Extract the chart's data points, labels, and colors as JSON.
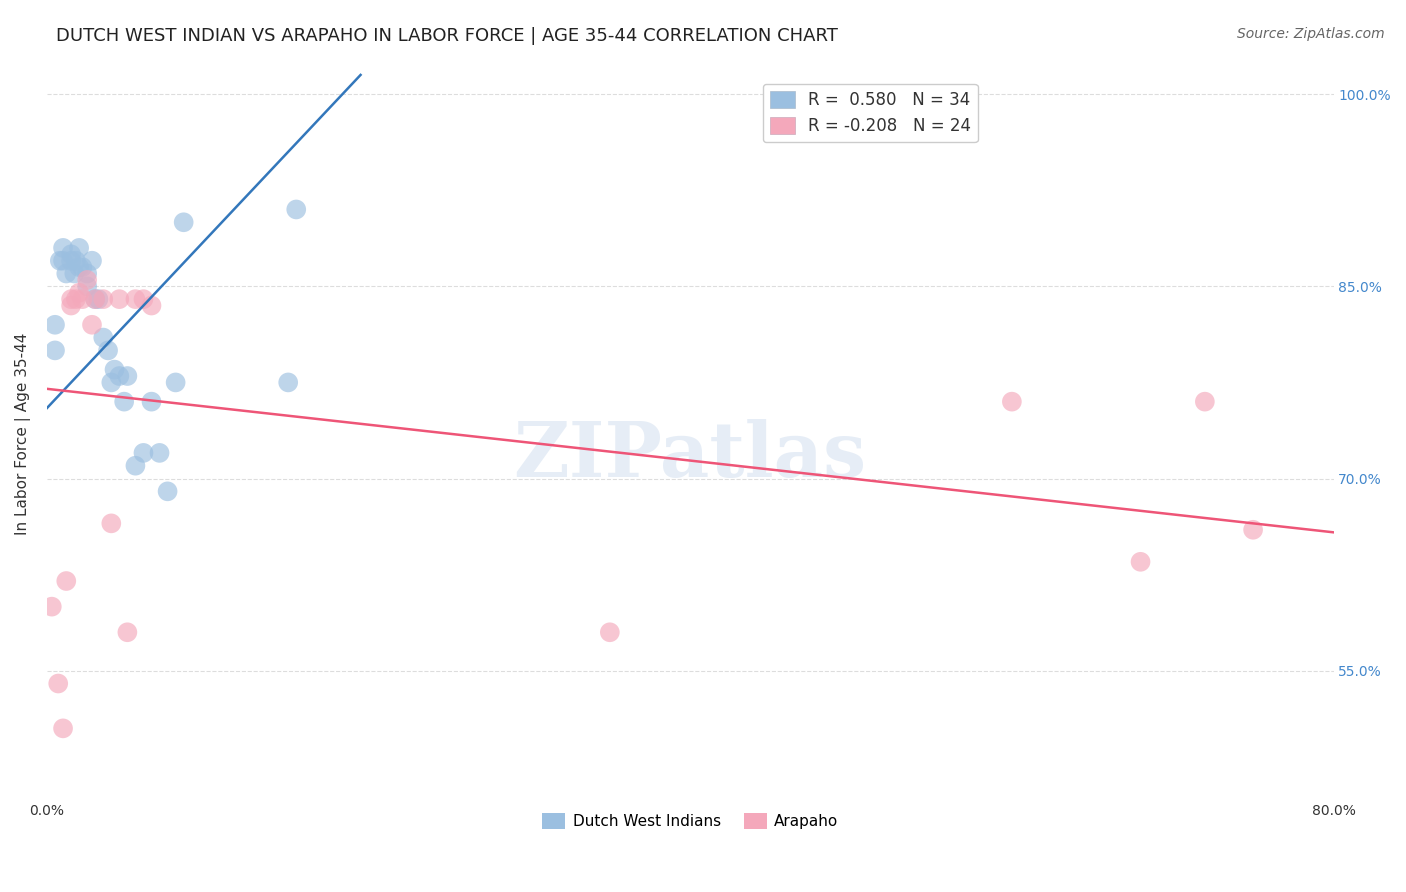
{
  "title": "DUTCH WEST INDIAN VS ARAPAHO IN LABOR FORCE | AGE 35-44 CORRELATION CHART",
  "source": "Source: ZipAtlas.com",
  "ylabel_label": "In Labor Force | Age 35-44",
  "x_min": 0.0,
  "x_max": 0.8,
  "y_min": 0.45,
  "y_max": 1.02,
  "x_tick_positions": [
    0.0,
    0.1,
    0.2,
    0.3,
    0.4,
    0.5,
    0.6,
    0.7,
    0.8
  ],
  "x_tick_labels": [
    "0.0%",
    "",
    "",
    "",
    "",
    "",
    "",
    "",
    "80.0%"
  ],
  "y_tick_positions": [
    0.55,
    0.7,
    0.85,
    1.0
  ],
  "right_y_tick_labels": [
    "55.0%",
    "70.0%",
    "85.0%",
    "100.0%"
  ],
  "legend_entries": [
    {
      "label": "R =  0.580   N = 34",
      "color": "#9BBFE0"
    },
    {
      "label": "R = -0.208   N = 24",
      "color": "#F4A8BB"
    }
  ],
  "blue_scatter_x": [
    0.005,
    0.005,
    0.008,
    0.01,
    0.01,
    0.012,
    0.015,
    0.015,
    0.017,
    0.018,
    0.02,
    0.02,
    0.022,
    0.025,
    0.025,
    0.028,
    0.03,
    0.032,
    0.035,
    0.038,
    0.04,
    0.042,
    0.045,
    0.048,
    0.05,
    0.055,
    0.06,
    0.065,
    0.07,
    0.075,
    0.08,
    0.085,
    0.15,
    0.155
  ],
  "blue_scatter_y": [
    0.8,
    0.82,
    0.87,
    0.87,
    0.88,
    0.86,
    0.87,
    0.875,
    0.86,
    0.87,
    0.88,
    0.865,
    0.865,
    0.85,
    0.86,
    0.87,
    0.84,
    0.84,
    0.81,
    0.8,
    0.775,
    0.785,
    0.78,
    0.76,
    0.78,
    0.71,
    0.72,
    0.76,
    0.72,
    0.69,
    0.775,
    0.9,
    0.775,
    0.91
  ],
  "pink_scatter_x": [
    0.003,
    0.007,
    0.01,
    0.012,
    0.015,
    0.015,
    0.018,
    0.02,
    0.022,
    0.025,
    0.028,
    0.03,
    0.035,
    0.04,
    0.045,
    0.05,
    0.055,
    0.06,
    0.065,
    0.35,
    0.6,
    0.68,
    0.72,
    0.75
  ],
  "pink_scatter_y": [
    0.6,
    0.54,
    0.505,
    0.62,
    0.835,
    0.84,
    0.84,
    0.845,
    0.84,
    0.855,
    0.82,
    0.84,
    0.84,
    0.665,
    0.84,
    0.58,
    0.84,
    0.84,
    0.835,
    0.58,
    0.76,
    0.635,
    0.76,
    0.66
  ],
  "blue_line_x": [
    0.0,
    0.195
  ],
  "blue_line_y": [
    0.755,
    1.015
  ],
  "pink_line_x": [
    0.0,
    0.8
  ],
  "pink_line_y": [
    0.77,
    0.658
  ],
  "watermark": "ZIPatlas",
  "grid_color": "#DDDDDD",
  "blue_color": "#9BBFE0",
  "pink_color": "#F4A8BB",
  "blue_line_color": "#3377BB",
  "pink_line_color": "#EE5577",
  "background_color": "#FFFFFF",
  "title_fontsize": 13,
  "axis_label_fontsize": 11,
  "tick_fontsize": 10,
  "legend_fontsize": 12,
  "source_fontsize": 10
}
